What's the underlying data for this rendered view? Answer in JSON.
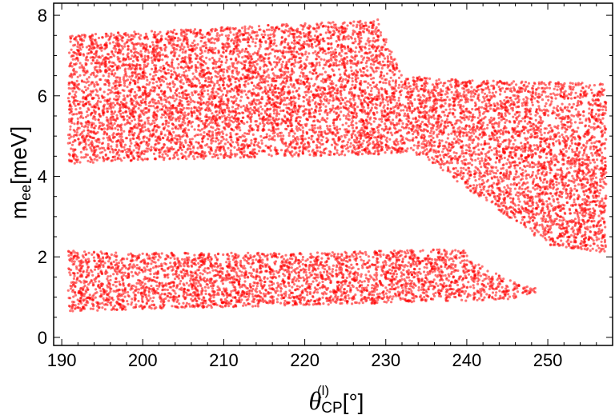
{
  "chart_data": {
    "type": "scatter",
    "title": "",
    "xlabel": {
      "symbol": "θ",
      "sub": "CP",
      "sup": "(l)",
      "unit": "[°]"
    },
    "ylabel": {
      "symbol": "m",
      "sub": "ee",
      "unit": "[meV]"
    },
    "xlim": [
      189,
      258
    ],
    "ylim": [
      -0.2,
      8.3
    ],
    "xticks": [
      190,
      200,
      210,
      220,
      230,
      240,
      250
    ],
    "yticks": [
      0,
      2,
      4,
      6,
      8
    ],
    "grid": false,
    "legend": "none",
    "marker_color": "#ff0000",
    "regions": [
      {
        "name": "",
        "x_range": [
          190.8,
          257.2
        ],
        "outline": [
          [
            190.8,
            4.3
          ],
          [
            200,
            4.4
          ],
          [
            210,
            4.45
          ],
          [
            220,
            4.5
          ],
          [
            230,
            4.55
          ],
          [
            233,
            4.6
          ],
          [
            236,
            4.3
          ],
          [
            240,
            3.7
          ],
          [
            245,
            3.0
          ],
          [
            250,
            2.3
          ],
          [
            257.2,
            2.1
          ],
          [
            257.2,
            6.3
          ],
          [
            250,
            6.35
          ],
          [
            240,
            6.4
          ],
          [
            232,
            6.5
          ],
          [
            229,
            7.9
          ],
          [
            220,
            7.8
          ],
          [
            210,
            7.7
          ],
          [
            200,
            7.6
          ],
          [
            190.8,
            7.5
          ]
        ]
      },
      {
        "name": "",
        "x_range": [
          190.8,
          248.5
        ],
        "outline": [
          [
            190.8,
            0.65
          ],
          [
            200,
            0.7
          ],
          [
            210,
            0.75
          ],
          [
            220,
            0.8
          ],
          [
            230,
            0.85
          ],
          [
            240,
            0.9
          ],
          [
            245,
            0.95
          ],
          [
            248.5,
            1.05
          ],
          [
            248.5,
            1.25
          ],
          [
            245,
            1.45
          ],
          [
            242,
            1.75
          ],
          [
            239.5,
            2.2
          ],
          [
            230,
            2.15
          ],
          [
            220,
            2.1
          ],
          [
            210,
            2.1
          ],
          [
            200,
            2.1
          ],
          [
            190.8,
            2.15
          ]
        ]
      }
    ]
  }
}
